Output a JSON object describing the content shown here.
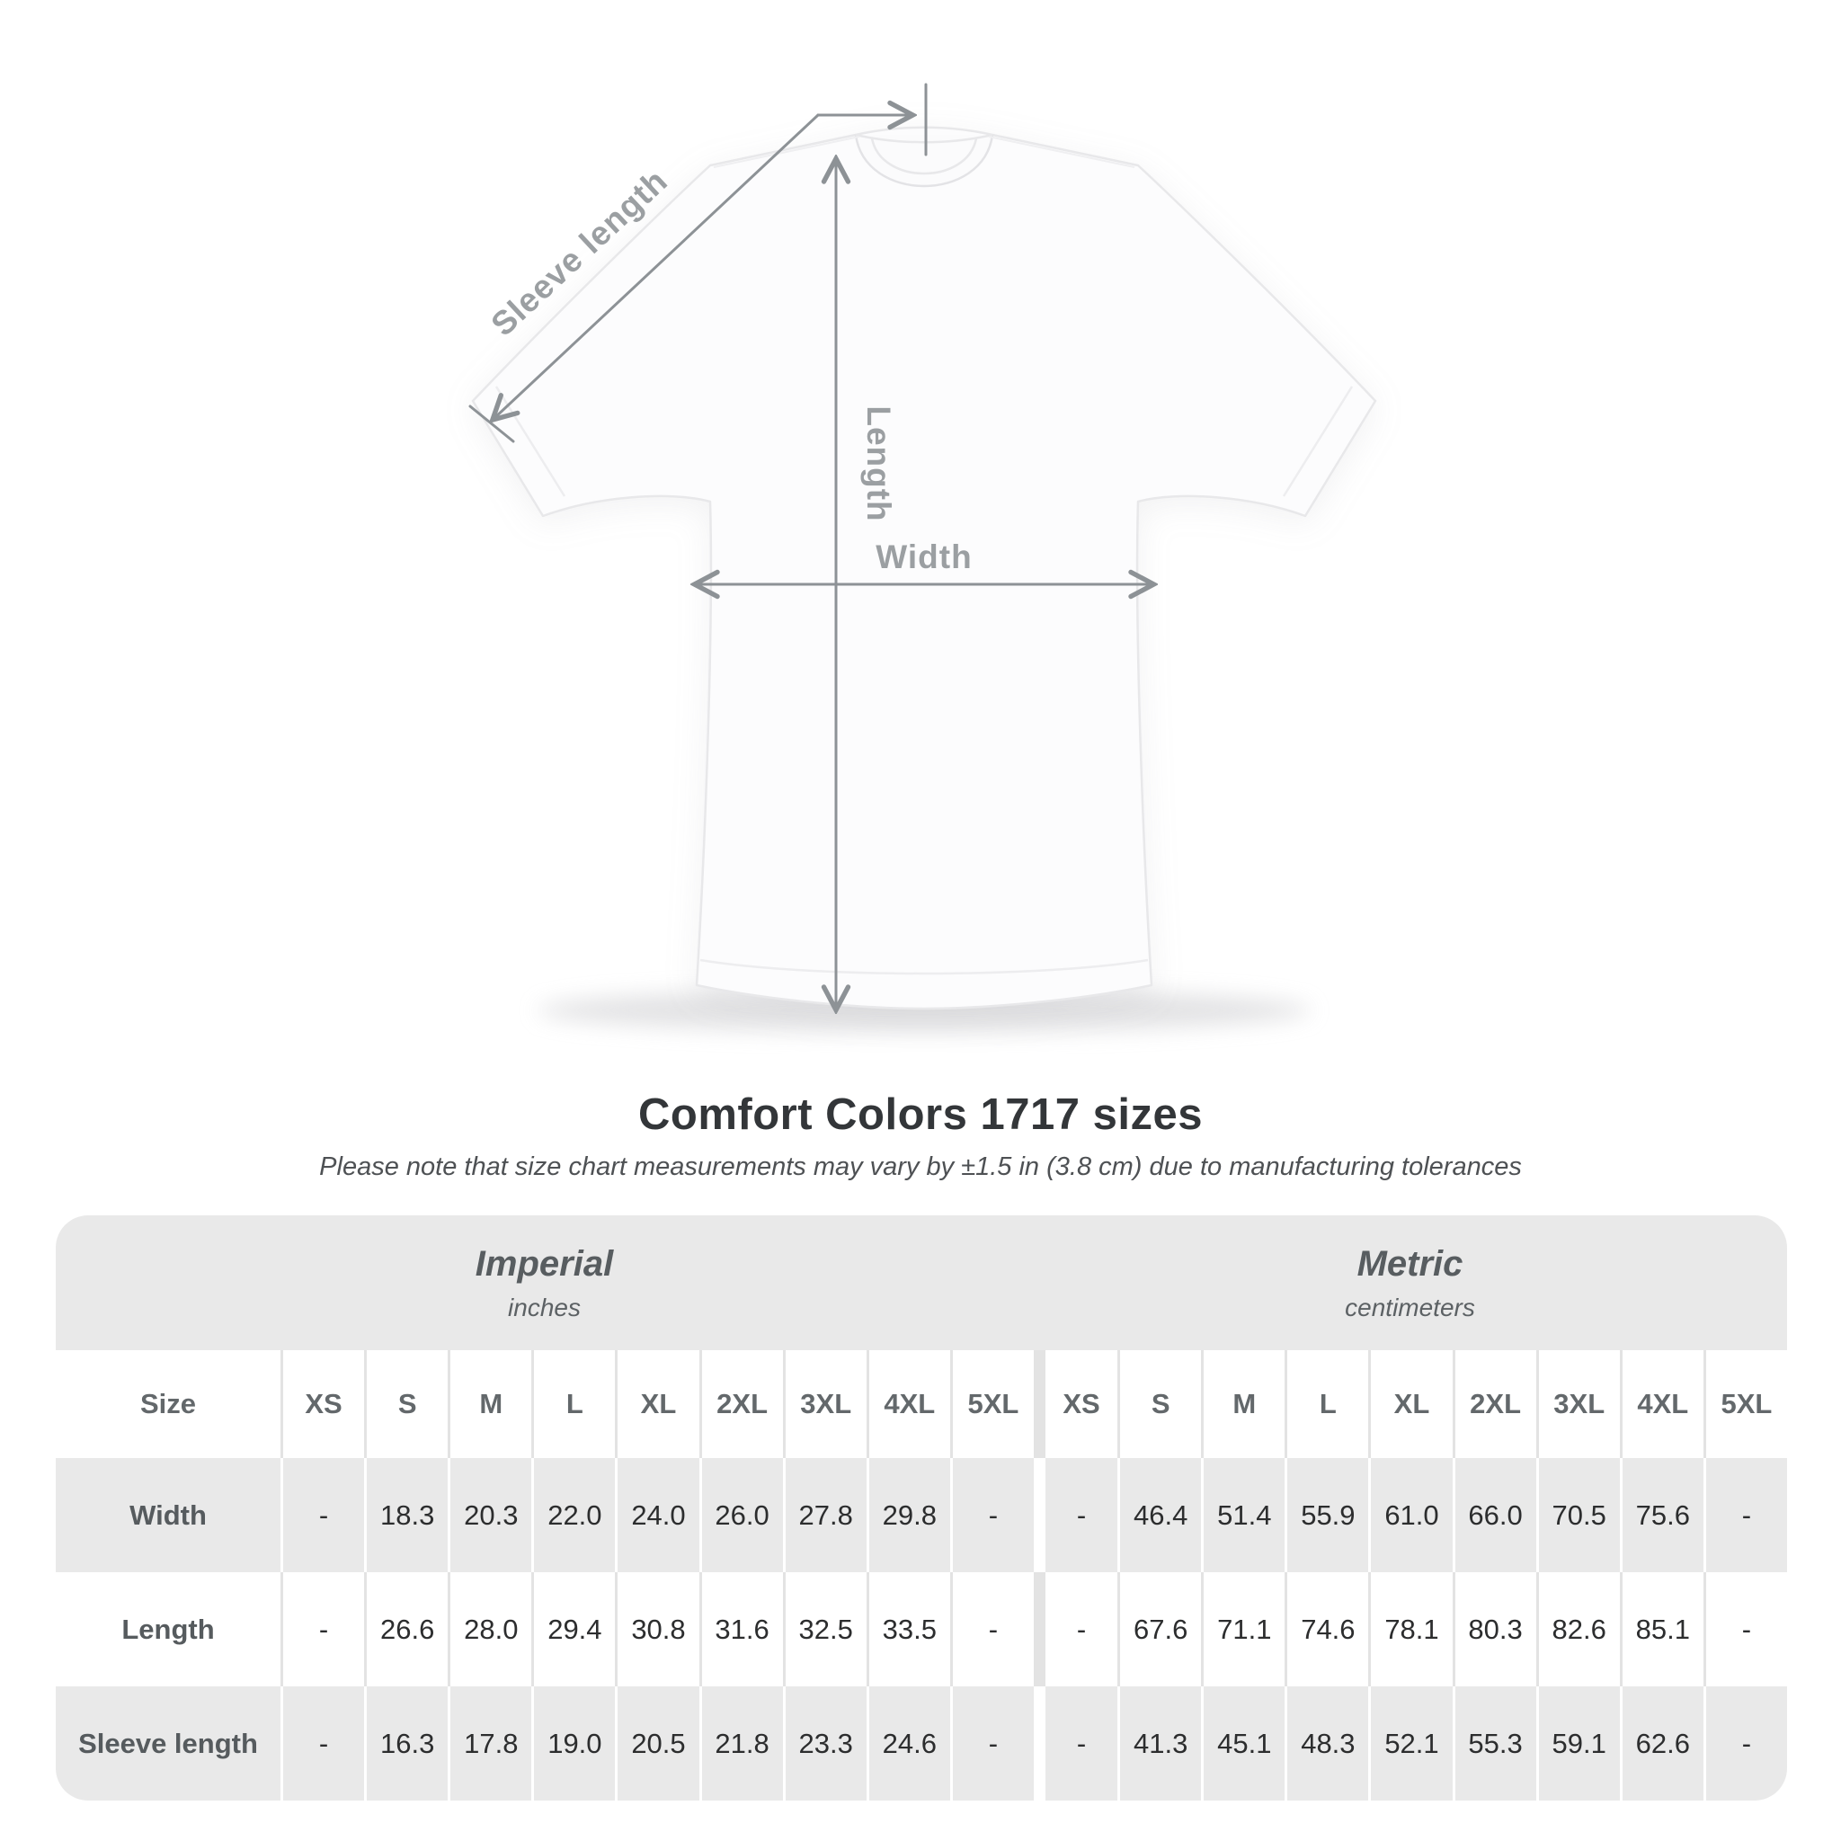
{
  "diagram": {
    "labels": {
      "sleeve_length": "Sleeve length",
      "length": "Length",
      "width": "Width"
    },
    "line_color": "#8d9296",
    "label_color": "#9b9fa2"
  },
  "title": "Comfort Colors 1717 sizes",
  "subtitle": "Please note that size chart measurements may vary by ±1.5 in (3.8 cm) due to manufacturing tolerances",
  "table": {
    "size_label": "Size",
    "unit_groups": [
      {
        "name": "Imperial",
        "unit": "inches"
      },
      {
        "name": "Metric",
        "unit": "centimeters"
      }
    ],
    "sizes": [
      "XS",
      "S",
      "M",
      "L",
      "XL",
      "2XL",
      "3XL",
      "4XL",
      "5XL"
    ],
    "rows": [
      {
        "label": "Width",
        "imperial": [
          "-",
          "18.3",
          "20.3",
          "22.0",
          "24.0",
          "26.0",
          "27.8",
          "29.8",
          "-"
        ],
        "metric": [
          "-",
          "46.4",
          "51.4",
          "55.9",
          "61.0",
          "66.0",
          "70.5",
          "75.6",
          "-"
        ]
      },
      {
        "label": "Length",
        "imperial": [
          "-",
          "26.6",
          "28.0",
          "29.4",
          "30.8",
          "31.6",
          "32.5",
          "33.5",
          "-"
        ],
        "metric": [
          "-",
          "67.6",
          "71.1",
          "74.6",
          "78.1",
          "80.3",
          "82.6",
          "85.1",
          "-"
        ]
      },
      {
        "label": "Sleeve length",
        "imperial": [
          "-",
          "16.3",
          "17.8",
          "19.0",
          "20.5",
          "21.8",
          "23.3",
          "24.6",
          "-"
        ],
        "metric": [
          "-",
          "41.3",
          "45.1",
          "48.3",
          "52.1",
          "55.3",
          "59.1",
          "62.6",
          "-"
        ]
      }
    ],
    "colors": {
      "band_gray": "#e9e9e9",
      "value_text": "#2c2d2e",
      "header_text": "#63686b"
    }
  }
}
